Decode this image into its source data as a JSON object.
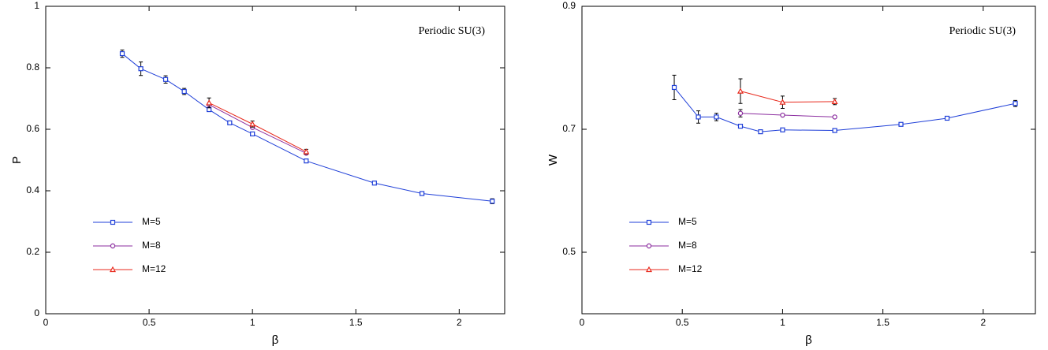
{
  "chart_data": [
    {
      "type": "line",
      "annotation": "Periodic SU(3)",
      "xlabel": "β",
      "ylabel": "P",
      "xlim": [
        0,
        2.22
      ],
      "ylim": [
        0,
        1
      ],
      "xticks": [
        0,
        0.5,
        1,
        1.5,
        2
      ],
      "yticks": [
        0,
        0.2,
        0.4,
        0.6,
        0.8,
        1
      ],
      "legend": "lower left",
      "series": [
        {
          "name": "M=5",
          "color": "#1f3fd8",
          "marker": "square",
          "x": [
            0.37,
            0.46,
            0.58,
            0.67,
            0.79,
            0.89,
            1.0,
            1.26,
            1.59,
            1.82,
            2.16
          ],
          "values": [
            0.846,
            0.797,
            0.762,
            0.723,
            0.664,
            0.621,
            0.585,
            0.497,
            0.425,
            0.391,
            0.366
          ],
          "errors": [
            0.012,
            0.022,
            0.012,
            0.01,
            null,
            null,
            null,
            null,
            null,
            null,
            0.008
          ]
        },
        {
          "name": "M=8",
          "color": "#8b2d9f",
          "marker": "circle",
          "x": [
            0.79,
            1.0,
            1.26
          ],
          "values": [
            0.68,
            0.606,
            0.522
          ],
          "errors": [
            null,
            null,
            null
          ]
        },
        {
          "name": "M=12",
          "color": "#e8291c",
          "marker": "triangle",
          "x": [
            0.79,
            1.0,
            1.26
          ],
          "values": [
            0.686,
            0.617,
            0.527
          ],
          "errors": [
            0.016,
            0.01,
            0.008
          ]
        }
      ]
    },
    {
      "type": "line",
      "annotation": "Periodic SU(3)",
      "xlabel": "β",
      "ylabel": "W",
      "xlim": [
        0,
        2.26
      ],
      "ylim": [
        0.4,
        0.9
      ],
      "xticks": [
        0,
        0.5,
        1,
        1.5,
        2
      ],
      "yticks": [
        0.5,
        0.7,
        0.9
      ],
      "legend": "lower left",
      "series": [
        {
          "name": "M=5",
          "color": "#1f3fd8",
          "marker": "square",
          "x": [
            0.46,
            0.58,
            0.67,
            0.79,
            0.89,
            1.0,
            1.26,
            1.59,
            1.82,
            2.16
          ],
          "values": [
            0.768,
            0.72,
            0.72,
            0.705,
            0.696,
            0.699,
            0.698,
            0.708,
            0.718,
            0.742
          ],
          "errors": [
            0.02,
            0.01,
            0.006,
            null,
            null,
            null,
            null,
            null,
            null,
            0.005
          ]
        },
        {
          "name": "M=8",
          "color": "#8b2d9f",
          "marker": "circle",
          "x": [
            0.79,
            1.0,
            1.26
          ],
          "values": [
            0.726,
            0.723,
            0.72
          ],
          "errors": [
            0.006,
            null,
            null
          ]
        },
        {
          "name": "M=12",
          "color": "#e8291c",
          "marker": "triangle",
          "x": [
            0.79,
            1.0,
            1.26
          ],
          "values": [
            0.762,
            0.744,
            0.745
          ],
          "errors": [
            0.02,
            0.01,
            0.005
          ]
        }
      ]
    }
  ]
}
